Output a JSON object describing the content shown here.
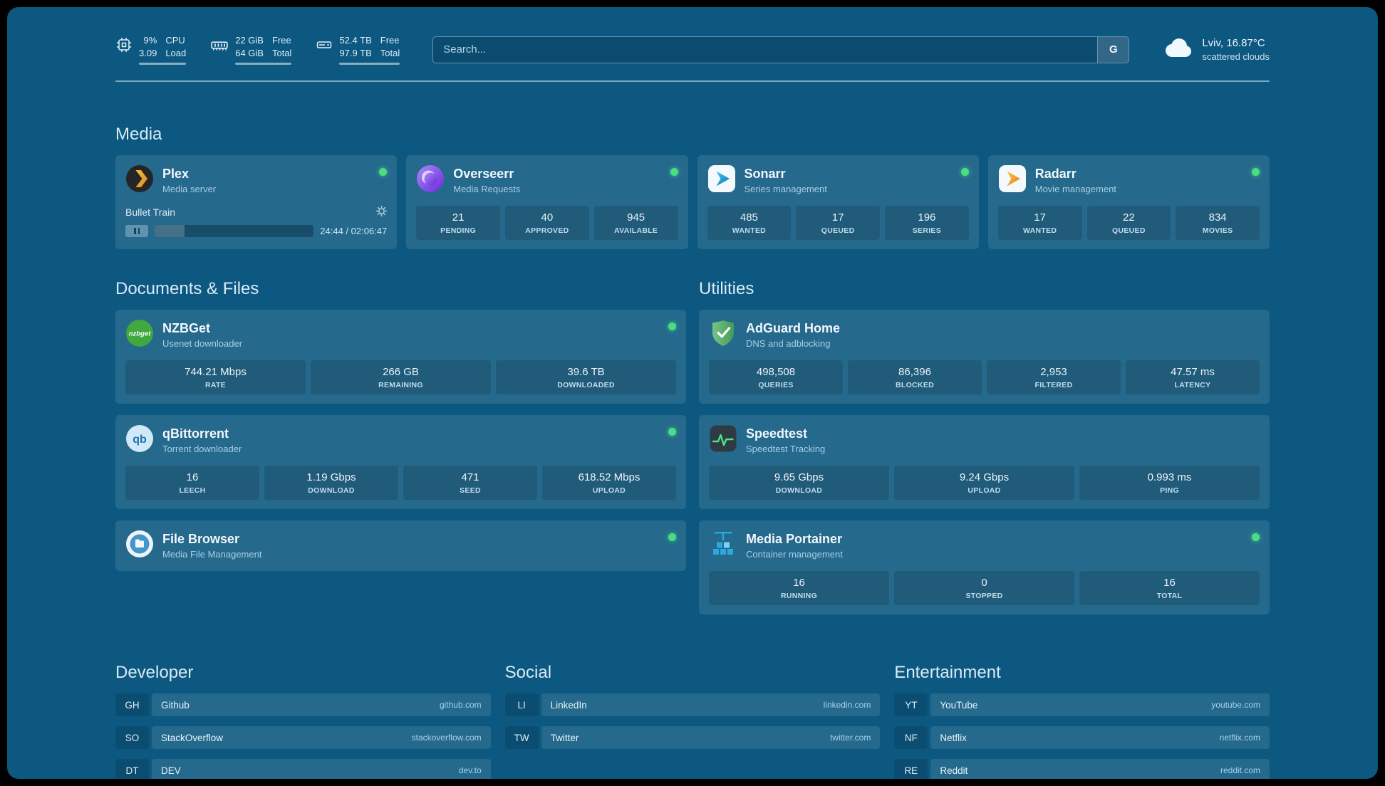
{
  "topbar": {
    "resources": [
      {
        "values": [
          "9%",
          "3.09"
        ],
        "labels": [
          "CPU",
          "Load"
        ]
      },
      {
        "values": [
          "22 GiB",
          "64 GiB"
        ],
        "labels": [
          "Free",
          "Total"
        ]
      },
      {
        "values": [
          "52.4 TB",
          "97.9 TB"
        ],
        "labels": [
          "Free",
          "Total"
        ]
      }
    ],
    "search": {
      "placeholder": "Search...",
      "provider_button": "G"
    },
    "weather": {
      "location": "Lviv, 16.87°C",
      "condition": "scattered clouds"
    }
  },
  "media": {
    "heading": "Media",
    "plex": {
      "name": "Plex",
      "desc": "Media server",
      "now_playing": "Bullet Train",
      "time": "24:44 / 02:06:47",
      "progress_pct": 19
    },
    "overseerr": {
      "name": "Overseerr",
      "desc": "Media Requests",
      "stats": [
        {
          "value": "21",
          "label": "PENDING"
        },
        {
          "value": "40",
          "label": "APPROVED"
        },
        {
          "value": "945",
          "label": "AVAILABLE"
        }
      ]
    },
    "sonarr": {
      "name": "Sonarr",
      "desc": "Series management",
      "stats": [
        {
          "value": "485",
          "label": "WANTED"
        },
        {
          "value": "17",
          "label": "QUEUED"
        },
        {
          "value": "196",
          "label": "SERIES"
        }
      ]
    },
    "radarr": {
      "name": "Radarr",
      "desc": "Movie management",
      "stats": [
        {
          "value": "17",
          "label": "WANTED"
        },
        {
          "value": "22",
          "label": "QUEUED"
        },
        {
          "value": "834",
          "label": "MOVIES"
        }
      ]
    }
  },
  "documents": {
    "heading": "Documents & Files",
    "nzbget": {
      "name": "NZBGet",
      "desc": "Usenet downloader",
      "icon_text": "nzbget",
      "stats": [
        {
          "value": "744.21 Mbps",
          "label": "RATE"
        },
        {
          "value": "266 GB",
          "label": "REMAINING"
        },
        {
          "value": "39.6 TB",
          "label": "DOWNLOADED"
        }
      ]
    },
    "qbittorrent": {
      "name": "qBittorrent",
      "desc": "Torrent downloader",
      "icon_text": "qb",
      "stats": [
        {
          "value": "16",
          "label": "LEECH"
        },
        {
          "value": "1.19 Gbps",
          "label": "DOWNLOAD"
        },
        {
          "value": "471",
          "label": "SEED"
        },
        {
          "value": "618.52 Mbps",
          "label": "UPLOAD"
        }
      ]
    },
    "filebrowser": {
      "name": "File Browser",
      "desc": "Media File Management"
    }
  },
  "utilities": {
    "heading": "Utilities",
    "adguard": {
      "name": "AdGuard Home",
      "desc": "DNS and adblocking",
      "stats": [
        {
          "value": "498,508",
          "label": "QUERIES"
        },
        {
          "value": "86,396",
          "label": "BLOCKED"
        },
        {
          "value": "2,953",
          "label": "FILTERED"
        },
        {
          "value": "47.57 ms",
          "label": "LATENCY"
        }
      ]
    },
    "speedtest": {
      "name": "Speedtest",
      "desc": "Speedtest Tracking",
      "stats": [
        {
          "value": "9.65 Gbps",
          "label": "DOWNLOAD"
        },
        {
          "value": "9.24 Gbps",
          "label": "UPLOAD"
        },
        {
          "value": "0.993 ms",
          "label": "PING"
        }
      ]
    },
    "portainer": {
      "name": "Media Portainer",
      "desc": "Container management",
      "stats": [
        {
          "value": "16",
          "label": "RUNNING"
        },
        {
          "value": "0",
          "label": "STOPPED"
        },
        {
          "value": "16",
          "label": "TOTAL"
        }
      ]
    }
  },
  "bookmarks": [
    {
      "heading": "Developer",
      "items": [
        {
          "abbr": "GH",
          "name": "Github",
          "domain": "github.com"
        },
        {
          "abbr": "SO",
          "name": "StackOverflow",
          "domain": "stackoverflow.com"
        },
        {
          "abbr": "DT",
          "name": "DEV",
          "domain": "dev.to"
        }
      ]
    },
    {
      "heading": "Social",
      "items": [
        {
          "abbr": "LI",
          "name": "LinkedIn",
          "domain": "linkedin.com"
        },
        {
          "abbr": "TW",
          "name": "Twitter",
          "domain": "twitter.com"
        }
      ]
    },
    {
      "heading": "Entertainment",
      "items": [
        {
          "abbr": "YT",
          "name": "YouTube",
          "domain": "youtube.com"
        },
        {
          "abbr": "NF",
          "name": "Netflix",
          "domain": "netflix.com"
        },
        {
          "abbr": "RE",
          "name": "Reddit",
          "domain": "reddit.com"
        }
      ]
    }
  ]
}
